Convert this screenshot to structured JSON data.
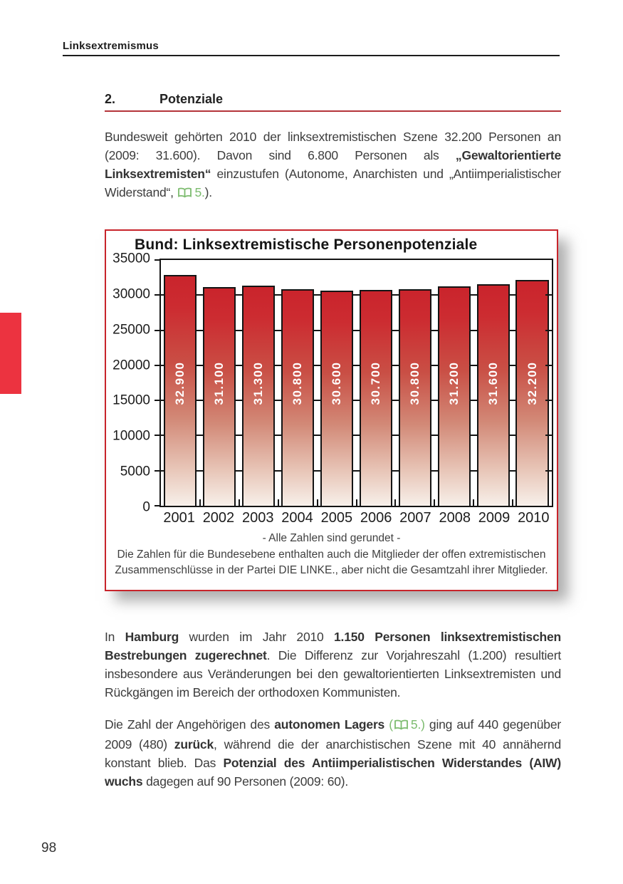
{
  "header": {
    "title": "Linksextremismus"
  },
  "section": {
    "number": "2.",
    "title": "Potenziale"
  },
  "footer": {
    "page_number": "98"
  },
  "icons": {
    "reference": "open-book-icon"
  },
  "accent_colors": {
    "chart_border_red": "#c8242b",
    "bar_red": "#cc2c31",
    "margin_tab_red": "#ec3340",
    "section_rule_red": "#b4343a",
    "reference_green": "#7cbb6e"
  },
  "paragraphs": {
    "p1": {
      "r1": "Bundesweit gehörten 2010 der linksextremistischen Szene 32.200 Personen an (2009: 31.600). Davon sind 6.800 Personen als ",
      "r2": "„Gewaltorientierte Linksextremisten“",
      "r3": " einzustufen (Autonome, Anarchisten und „Antiimperialistischer Widerstand“, ",
      "r4": "5.",
      "r5": ")."
    },
    "p2": {
      "r1": "In ",
      "r2": "Hamburg",
      "r3": " wurden im Jahr 2010 ",
      "r4": "1.150 Personen linksextremistischen Bestrebungen zugerechnet",
      "r5": ". Die Differenz zur Vorjahreszahl (1.200) resultiert insbesondere aus Veränderungen bei den gewaltorientierten Linksextremisten und Rückgängen im Bereich der orthodoxen Kommunisten."
    },
    "p3": {
      "r1": "Die Zahl der Angehörigen des ",
      "r2": "autonomen Lagers",
      "r3": " (",
      "r4": "5.)",
      "r5": " ging auf 440 gegenüber 2009 (480) ",
      "r6": "zurück",
      "r7": ", während die der anarchistischen Szene mit 40 annähernd konstant blieb. Das ",
      "r8": "Potenzial des Antiimperialistischen Widerstandes (AIW) wuchs",
      "r9": " dagegen auf 90 Personen (2009: 60)."
    }
  },
  "chart_data": {
    "type": "bar",
    "title": "Bund: Linksextremistische Personenpotenziale",
    "categories": [
      "2001",
      "2002",
      "2003",
      "2004",
      "2005",
      "2006",
      "2007",
      "2008",
      "2009",
      "2010"
    ],
    "values": [
      32900,
      31100,
      31300,
      30800,
      30600,
      30700,
      30800,
      31200,
      31600,
      32200
    ],
    "bar_labels": [
      "32.900",
      "31.100",
      "31.300",
      "30.800",
      "30.600",
      "30.700",
      "30.800",
      "31.200",
      "31.600",
      "32.200"
    ],
    "ylim": [
      0,
      35000
    ],
    "ytick_step": 5000,
    "yticks": [
      "0",
      "5000",
      "10000",
      "15000",
      "20000",
      "25000",
      "30000",
      "35000"
    ],
    "grid": true,
    "legend": "none",
    "notes": [
      "- Alle Zahlen sind gerundet -",
      "Die Zahlen für die Bundesebene enthalten auch die Mitglieder der offen extremistischen Zusammenschlüsse in der Partei DIE LINKE., aber nicht die Gesamtzahl ihrer Mitglieder."
    ]
  }
}
